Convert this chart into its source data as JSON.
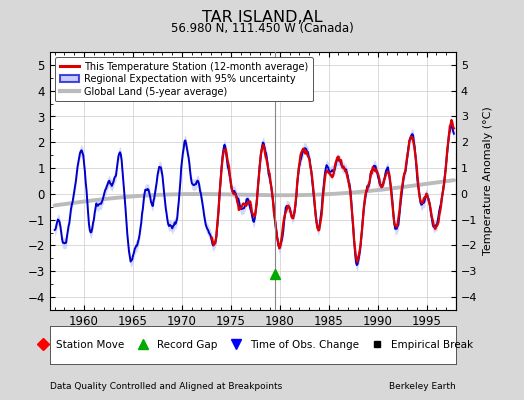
{
  "title": "TAR ISLAND,AL",
  "subtitle": "56.980 N, 111.450 W (Canada)",
  "footer_left": "Data Quality Controlled and Aligned at Breakpoints",
  "footer_right": "Berkeley Earth",
  "ylabel": "Temperature Anomaly (°C)",
  "xlim": [
    1956.5,
    1998.0
  ],
  "ylim": [
    -4.5,
    5.5
  ],
  "yticks": [
    -4,
    -3,
    -2,
    -1,
    0,
    1,
    2,
    3,
    4,
    5
  ],
  "xticks": [
    1960,
    1965,
    1970,
    1975,
    1980,
    1985,
    1990,
    1995
  ],
  "fig_bg": "#d8d8d8",
  "plot_bg": "#ffffff",
  "regional_fill_color": "#b0b8ff",
  "regional_line_color": "#0000cc",
  "station_color": "#dd0000",
  "global_color": "#bbbbbb",
  "record_gap_x": 1979.5,
  "record_gap_y": -3.1,
  "station_start_year": 1973.0,
  "blue_line_start": 1957.0,
  "blue_line_end": 1997.5
}
